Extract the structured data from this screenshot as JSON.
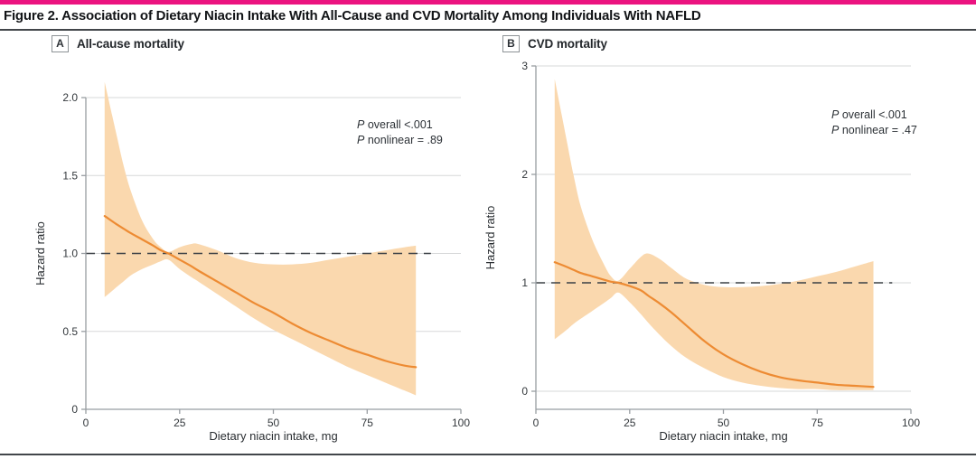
{
  "figure": {
    "title": "Figure 2. Association of Dietary Niacin Intake With All-Cause and CVD Mortality Among Individuals With NAFLD"
  },
  "colors": {
    "accent_bar": "#EB1380",
    "band": "#FAD8AE",
    "curve": "#ED8B33",
    "reference": "#3B4045",
    "grid": "#D7D8D9",
    "axis": "#989DA2",
    "rule": "#42464A"
  },
  "chart_data": [
    {
      "type": "line",
      "panel_label": "A",
      "title": "All-cause mortality",
      "xlabel": "Dietary niacin intake, mg",
      "ylabel": "Hazard ratio",
      "xlim": [
        0,
        100
      ],
      "ylim": [
        0,
        2.0
      ],
      "xticks": [
        0,
        25,
        50,
        75,
        100
      ],
      "yticks": [
        {
          "v": 0,
          "label": "0"
        },
        {
          "v": 0.5,
          "label": "0.5"
        },
        {
          "v": 1.0,
          "label": "1.0"
        },
        {
          "v": 1.5,
          "label": "1.5"
        },
        {
          "v": 2.0,
          "label": "2.0"
        }
      ],
      "grid": true,
      "legend": "none",
      "reference_line": {
        "y": 1.0,
        "x_end": 92,
        "style": "dashed"
      },
      "annotations": [
        "P overall <.001",
        "P nonlinear = .89"
      ],
      "series": [
        {
          "name": "hazard_ratio",
          "x": [
            5,
            8,
            10,
            12,
            15,
            18,
            20,
            22,
            25,
            28,
            30,
            35,
            40,
            45,
            50,
            55,
            60,
            65,
            70,
            75,
            80,
            85,
            88
          ],
          "y": [
            1.24,
            1.19,
            1.16,
            1.13,
            1.09,
            1.05,
            1.02,
            1.0,
            0.96,
            0.92,
            0.89,
            0.82,
            0.75,
            0.68,
            0.62,
            0.55,
            0.49,
            0.44,
            0.39,
            0.35,
            0.31,
            0.28,
            0.27
          ]
        },
        {
          "name": "ci_upper",
          "x": [
            5,
            8,
            10,
            12,
            15,
            18,
            20,
            22,
            25,
            28,
            30,
            35,
            40,
            45,
            50,
            55,
            60,
            65,
            70,
            75,
            80,
            85,
            88
          ],
          "y": [
            2.1,
            1.78,
            1.57,
            1.4,
            1.21,
            1.09,
            1.04,
            1.01,
            1.04,
            1.06,
            1.06,
            1.02,
            0.97,
            0.94,
            0.93,
            0.93,
            0.94,
            0.96,
            0.98,
            1.0,
            1.02,
            1.04,
            1.05
          ]
        },
        {
          "name": "ci_lower",
          "x": [
            5,
            8,
            10,
            12,
            15,
            18,
            20,
            22,
            25,
            28,
            30,
            35,
            40,
            45,
            50,
            55,
            60,
            65,
            70,
            75,
            80,
            85,
            88
          ],
          "y": [
            0.72,
            0.78,
            0.82,
            0.86,
            0.9,
            0.93,
            0.95,
            0.96,
            0.9,
            0.85,
            0.82,
            0.74,
            0.66,
            0.58,
            0.51,
            0.45,
            0.39,
            0.33,
            0.27,
            0.22,
            0.17,
            0.12,
            0.09
          ]
        }
      ]
    },
    {
      "type": "line",
      "panel_label": "B",
      "title": "CVD mortality",
      "xlabel": "Dietary niacin intake, mg",
      "ylabel": "Hazard ratio",
      "xlim": [
        0,
        100
      ],
      "ylim": [
        0,
        3
      ],
      "xticks": [
        0,
        25,
        50,
        75,
        100
      ],
      "yticks": [
        {
          "v": 0,
          "label": "0"
        },
        {
          "v": 1,
          "label": "1"
        },
        {
          "v": 2,
          "label": "2"
        },
        {
          "v": 3,
          "label": "3"
        }
      ],
      "grid": true,
      "legend": "none",
      "reference_line": {
        "y": 1.0,
        "x_end": 95,
        "style": "dashed"
      },
      "annotations": [
        "P overall <.001",
        "P nonlinear = .47"
      ],
      "series": [
        {
          "name": "hazard_ratio",
          "x": [
            5,
            8,
            10,
            12,
            15,
            18,
            20,
            22,
            25,
            28,
            30,
            33,
            36,
            40,
            45,
            50,
            55,
            60,
            65,
            70,
            75,
            80,
            85,
            90
          ],
          "y": [
            1.19,
            1.15,
            1.12,
            1.09,
            1.06,
            1.03,
            1.01,
            1.0,
            0.97,
            0.93,
            0.88,
            0.81,
            0.73,
            0.61,
            0.46,
            0.34,
            0.25,
            0.18,
            0.13,
            0.1,
            0.08,
            0.06,
            0.05,
            0.04
          ]
        },
        {
          "name": "ci_upper",
          "x": [
            5,
            8,
            10,
            12,
            15,
            18,
            20,
            22,
            25,
            28,
            30,
            33,
            36,
            40,
            45,
            50,
            55,
            60,
            65,
            70,
            75,
            80,
            85,
            90
          ],
          "y": [
            2.88,
            2.35,
            2.0,
            1.7,
            1.4,
            1.18,
            1.06,
            1.02,
            1.13,
            1.24,
            1.27,
            1.22,
            1.14,
            1.04,
            0.98,
            0.96,
            0.96,
            0.97,
            0.99,
            1.02,
            1.06,
            1.1,
            1.15,
            1.2
          ]
        },
        {
          "name": "ci_lower",
          "x": [
            5,
            8,
            10,
            12,
            15,
            18,
            20,
            22,
            25,
            28,
            30,
            33,
            36,
            40,
            45,
            50,
            55,
            60,
            65,
            70,
            75,
            80,
            85,
            90
          ],
          "y": [
            0.48,
            0.56,
            0.62,
            0.67,
            0.74,
            0.81,
            0.86,
            0.91,
            0.82,
            0.71,
            0.63,
            0.52,
            0.42,
            0.31,
            0.21,
            0.13,
            0.08,
            0.05,
            0.03,
            0.02,
            0.02,
            0.01,
            0.01,
            0.01
          ]
        }
      ]
    }
  ]
}
